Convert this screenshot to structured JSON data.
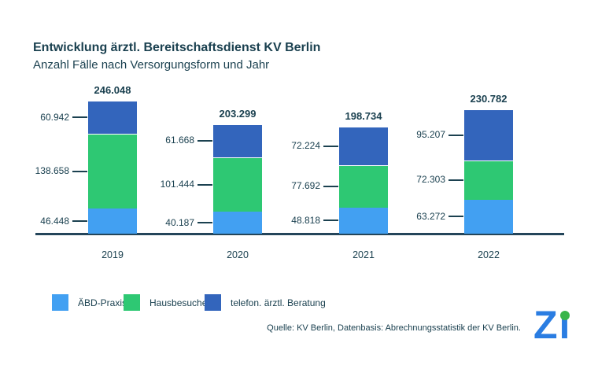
{
  "header": {
    "title": "Entwicklung ärztl. Bereitschaftsdienst KV Berlin",
    "subtitle": "Anzahl Fälle nach Versorgungsform und Jahr"
  },
  "chart_data": {
    "type": "bar",
    "stacked": true,
    "title": "Entwicklung ärztl. Bereitschaftsdienst KV Berlin",
    "subtitle": "Anzahl Fälle nach Versorgungsform und Jahr",
    "xlabel": "",
    "ylabel": "",
    "grid": false,
    "legend_position": "bottom",
    "categories": [
      "2019",
      "2020",
      "2021",
      "2022"
    ],
    "series": [
      {
        "name": "ÄBD-Praxis",
        "color": "#42a0f2",
        "values": [
          46448,
          40187,
          48818,
          63272
        ],
        "labels": [
          "46.448",
          "40.187",
          "48.818",
          "63.272"
        ]
      },
      {
        "name": "Hausbesuche",
        "color": "#2ec873",
        "values": [
          138658,
          101444,
          77692,
          72303
        ],
        "labels": [
          "138.658",
          "101.444",
          "77.692",
          "72.303"
        ]
      },
      {
        "name": "telefon. ärztl. Beratung",
        "color": "#3365bc",
        "values": [
          60942,
          61668,
          72224,
          95207
        ],
        "labels": [
          "60.942",
          "61.668",
          "72.224",
          "95.207"
        ]
      }
    ],
    "totals": [
      246048,
      203299,
      198734,
      230782
    ],
    "total_labels": [
      "246.048",
      "203.299",
      "198.734",
      "230.782"
    ]
  },
  "legend": {
    "items": [
      {
        "label": "ÄBD-Praxis",
        "color": "#42a0f2"
      },
      {
        "label": "Hausbesuche",
        "color": "#2ec873"
      },
      {
        "label": "telefon. ärztl. Beratung",
        "color": "#3365bc"
      }
    ]
  },
  "footer": {
    "source": "Quelle: KV Berlin, Datenbasis: Abrechnungsstatistik der KV Berlin."
  },
  "logo": {
    "text": "Zi",
    "blue": "#2a7de2",
    "green": "#39b54a"
  },
  "colors": {
    "text": "#1b4150",
    "axis": "#24455a"
  }
}
